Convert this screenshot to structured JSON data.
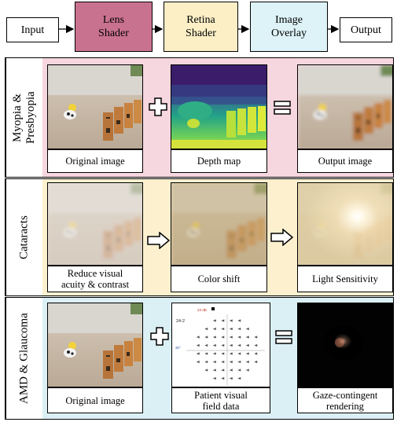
{
  "pipeline": {
    "input": "Input",
    "lens": "Lens\nShader",
    "retina": "Retina\nShader",
    "overlay": "Image\nOverlay",
    "output": "Output",
    "colors": {
      "lens": "#c9728f",
      "retina": "#fcefc6",
      "overlay": "#ddf3f7"
    }
  },
  "rows": {
    "myopia": {
      "label": "Myopia &\nPresbyopia",
      "captions": [
        "Original image",
        "Depth map",
        "Output image"
      ],
      "ops": [
        "plus-icon",
        "equals-icon"
      ],
      "bg": "#f6d6df"
    },
    "cataracts": {
      "label": "Cataracts",
      "captions": [
        "Reduce visual\nacuity & contrast",
        "Color shift",
        "Light Sensitivity"
      ],
      "ops": [
        "arrow-right-icon",
        "arrow-right-icon"
      ],
      "bg": "#fcf0cf"
    },
    "amd": {
      "label": "AMD & Glaucoma",
      "captions": [
        "Original image",
        "Patient visual\nfield data",
        "Gaze-contingent\nrendering"
      ],
      "ops": [
        "plus-icon",
        "equals-icon"
      ],
      "bg": "#dbf0f5"
    }
  },
  "field_chart": {
    "header": "23 dB",
    "test": "24-2",
    "angle": "30°"
  }
}
